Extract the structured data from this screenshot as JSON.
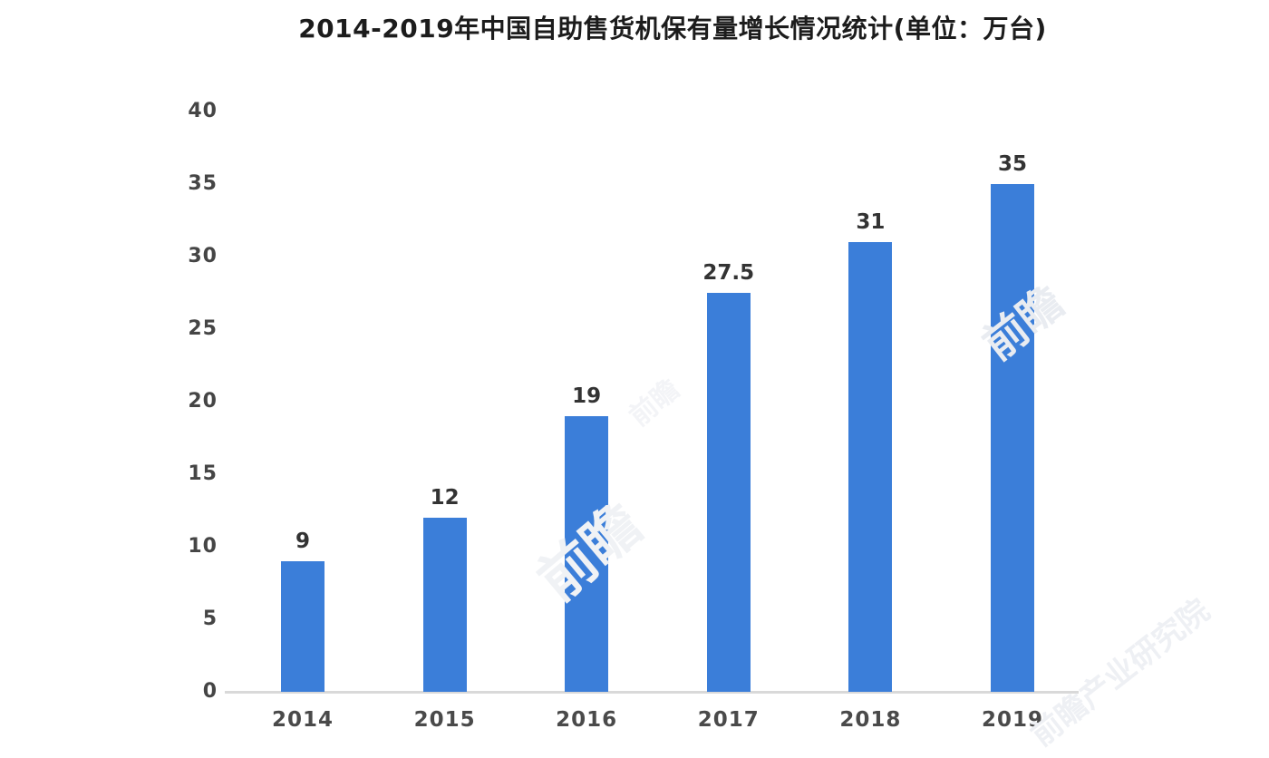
{
  "chart_data": {
    "type": "bar",
    "title": "2014-2019年中国自助售货机保有量增长情况统计(单位：万台)",
    "categories": [
      "2014",
      "2015",
      "2016",
      "2017",
      "2018",
      "2019"
    ],
    "values": [
      9,
      12,
      19,
      27.5,
      31,
      35
    ],
    "value_labels": [
      "9",
      "12",
      "19",
      "27.5",
      "31",
      "35"
    ],
    "xlabel": "",
    "ylabel": "",
    "ylim": [
      0,
      40
    ],
    "yticks": [
      0,
      5,
      10,
      15,
      20,
      25,
      30,
      35,
      40
    ],
    "grid": false,
    "legend": "none",
    "bar_color": "#3b7ed9",
    "axis_line_color": "#d9d9d9",
    "title_color": "#1c1c1c",
    "tick_label_color": "#454545",
    "value_label_color": "#333333"
  },
  "watermarks": {
    "mark1": "前瞻",
    "mark2": "前瞻",
    "mark3": "前瞻产业研究院",
    "mark4": "前瞻"
  }
}
